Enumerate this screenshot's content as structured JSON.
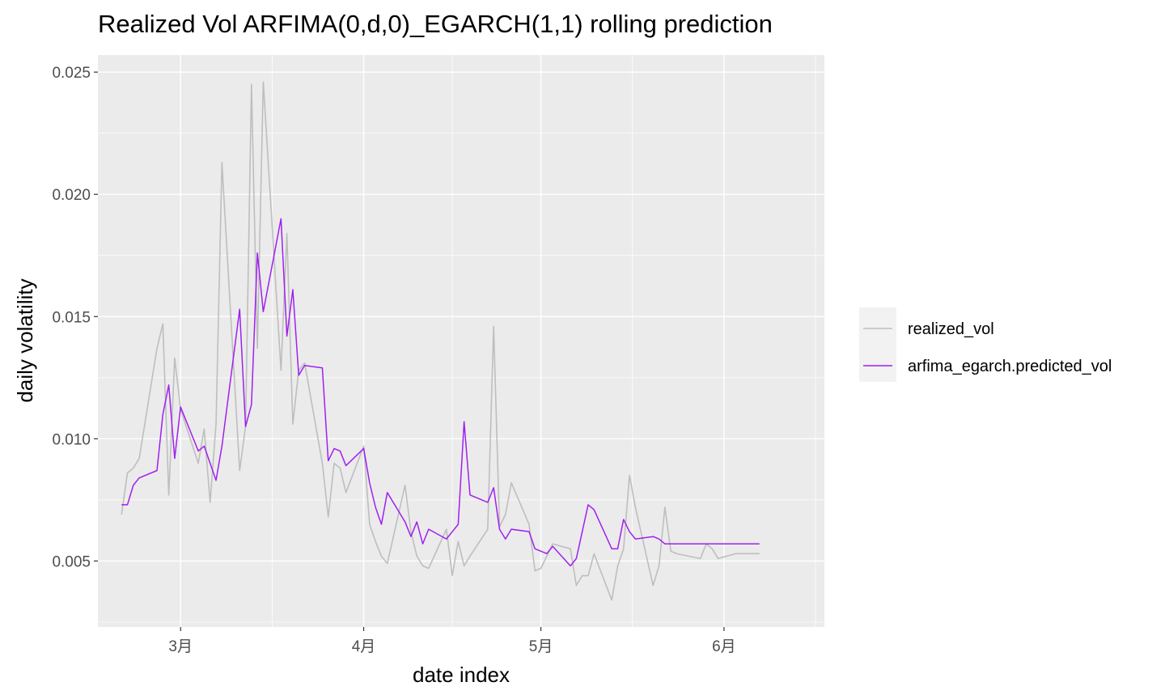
{
  "chart_data": {
    "type": "line",
    "title": "Realized Vol ARFIMA(0,d,0)_EGARCH(1,1) rolling prediction",
    "xlabel": "date index",
    "ylabel": "daily volatility",
    "x_ticks": [
      {
        "date": "2024-03-01",
        "label": "3月"
      },
      {
        "date": "2024-04-01",
        "label": "4月"
      },
      {
        "date": "2024-05-01",
        "label": "5月"
      },
      {
        "date": "2024-06-01",
        "label": "6月"
      }
    ],
    "y_ticks": [
      {
        "value": 0.005,
        "label": "0.005"
      },
      {
        "value": 0.01,
        "label": "0.010"
      },
      {
        "value": 0.015,
        "label": "0.015"
      },
      {
        "value": 0.02,
        "label": "0.020"
      },
      {
        "value": 0.025,
        "label": "0.025"
      }
    ],
    "xlim": [
      "2024-02-16",
      "2024-06-18"
    ],
    "ylim": [
      0.0023,
      0.0257
    ],
    "grid": true,
    "legend_position": "right",
    "x": [
      "2024-02-20",
      "2024-02-21",
      "2024-02-22",
      "2024-02-23",
      "2024-02-26",
      "2024-02-27",
      "2024-02-28",
      "2024-02-29",
      "2024-03-01",
      "2024-03-04",
      "2024-03-05",
      "2024-03-06",
      "2024-03-07",
      "2024-03-08",
      "2024-03-11",
      "2024-03-12",
      "2024-03-13",
      "2024-03-14",
      "2024-03-15",
      "2024-03-18",
      "2024-03-19",
      "2024-03-20",
      "2024-03-21",
      "2024-03-22",
      "2024-03-25",
      "2024-03-26",
      "2024-03-27",
      "2024-03-28",
      "2024-03-29",
      "2024-04-01",
      "2024-04-02",
      "2024-04-03",
      "2024-04-04",
      "2024-04-05",
      "2024-04-08",
      "2024-04-09",
      "2024-04-10",
      "2024-04-11",
      "2024-04-12",
      "2024-04-15",
      "2024-04-16",
      "2024-04-17",
      "2024-04-18",
      "2024-04-19",
      "2024-04-22",
      "2024-04-23",
      "2024-04-24",
      "2024-04-25",
      "2024-04-26",
      "2024-04-29",
      "2024-04-30",
      "2024-05-01",
      "2024-05-02",
      "2024-05-03",
      "2024-05-06",
      "2024-05-07",
      "2024-05-08",
      "2024-05-09",
      "2024-05-10",
      "2024-05-13",
      "2024-05-14",
      "2024-05-15",
      "2024-05-16",
      "2024-05-17",
      "2024-05-20",
      "2024-05-21",
      "2024-05-22",
      "2024-05-23",
      "2024-05-24",
      "2024-05-28",
      "2024-05-29",
      "2024-05-30",
      "2024-05-31",
      "2024-06-03",
      "2024-06-04",
      "2024-06-05",
      "2024-06-06",
      "2024-06-07"
    ],
    "series": [
      {
        "name": "realized_vol",
        "color": "#bebebe",
        "values": [
          0.0069,
          0.0086,
          0.0088,
          0.0092,
          0.0137,
          0.0147,
          0.0077,
          0.0133,
          0.0112,
          0.009,
          0.0104,
          0.0074,
          0.0106,
          0.0213,
          0.0087,
          0.0105,
          0.0245,
          0.0137,
          0.0246,
          0.0128,
          0.0184,
          0.0106,
          0.0128,
          0.0131,
          0.009,
          0.0068,
          0.009,
          0.0088,
          0.0078,
          0.0097,
          0.0065,
          0.0058,
          0.0052,
          0.0049,
          0.0081,
          0.0062,
          0.0052,
          0.0048,
          0.0047,
          0.0063,
          0.0044,
          0.0058,
          0.0048,
          0.0052,
          0.0063,
          0.0146,
          0.0064,
          0.0069,
          0.0082,
          0.0065,
          0.0046,
          0.0047,
          0.0052,
          0.0057,
          0.0055,
          0.004,
          0.0044,
          0.0044,
          0.0053,
          0.0034,
          0.0048,
          0.0055,
          0.0085,
          0.0072,
          0.004,
          0.0048,
          0.0072,
          0.0054,
          0.0053,
          0.0051,
          0.0057,
          0.0055,
          0.0051,
          0.0053,
          0.0053,
          0.0053,
          0.0053,
          0.0053
        ]
      },
      {
        "name": "arfima_egarch.predicted_vol",
        "color": "#a020f0",
        "values": [
          0.0073,
          0.0073,
          0.0081,
          0.0084,
          0.0087,
          0.011,
          0.0122,
          0.0092,
          0.0113,
          0.0095,
          0.0097,
          0.009,
          0.0083,
          0.0097,
          0.0153,
          0.0105,
          0.0114,
          0.0176,
          0.0152,
          0.019,
          0.0142,
          0.0161,
          0.0126,
          0.013,
          0.0129,
          0.0091,
          0.0096,
          0.0095,
          0.0089,
          0.0096,
          0.0082,
          0.0072,
          0.0065,
          0.0078,
          0.0066,
          0.006,
          0.0066,
          0.0057,
          0.0063,
          0.0059,
          0.0062,
          0.0065,
          0.0107,
          0.0077,
          0.0074,
          0.008,
          0.0063,
          0.0059,
          0.0063,
          0.0062,
          0.0055,
          0.0054,
          0.0053,
          0.0056,
          0.0048,
          0.0051,
          0.0062,
          0.0073,
          0.0071,
          0.0055,
          0.0055,
          0.0067,
          0.0062,
          0.0059,
          0.006,
          0.0059,
          0.0057,
          0.0057,
          0.0057,
          0.0057,
          0.0057,
          0.0057,
          0.0057,
          0.0057,
          0.0057,
          0.0057,
          0.0057,
          0.0057
        ]
      }
    ]
  }
}
